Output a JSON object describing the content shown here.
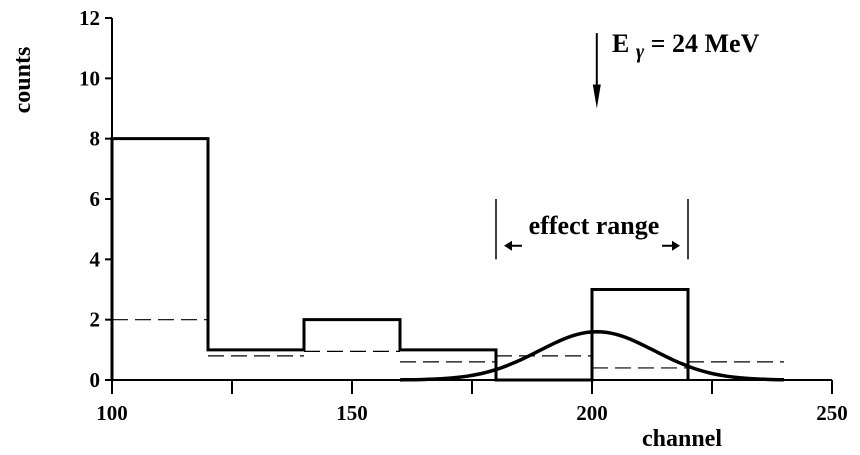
{
  "chart_data": {
    "type": "histogram",
    "xlabel": "channel",
    "ylabel": "counts",
    "xlim": [
      100,
      250
    ],
    "ylim": [
      0,
      12
    ],
    "x_ticks": [
      100,
      150,
      200,
      250
    ],
    "x_minor_ticks": [
      125,
      175,
      225
    ],
    "y_ticks": [
      0,
      2,
      4,
      6,
      8,
      10,
      12
    ],
    "grid": false,
    "series": [
      {
        "style": "solid-thick",
        "bin_edges": [
          100,
          120,
          140,
          160,
          180,
          200,
          220
        ],
        "values": [
          8,
          1,
          2,
          1,
          0,
          3
        ]
      },
      {
        "style": "dashed",
        "steps": [
          {
            "x": [
              100,
              120
            ],
            "y": 2
          },
          {
            "x": [
              120,
              140
            ],
            "y": 0.8
          },
          {
            "x": [
              140,
              160
            ],
            "y": 0.95
          },
          {
            "x": [
              160,
              180
            ],
            "y": 0.6
          },
          {
            "x": [
              180,
              200
            ],
            "y": 0.8
          },
          {
            "x": [
              200,
              220
            ],
            "y": 0.4
          },
          {
            "x": [
              220,
              240
            ],
            "y": 0.6
          }
        ]
      },
      {
        "style": "gaussian",
        "mean": 201,
        "sigma": 12,
        "amplitude": 1.6,
        "x_range": [
          160,
          240
        ]
      }
    ],
    "annotations": {
      "energy": {
        "prefix": "E",
        "symbol": "γ",
        "rest": "= 24 MeV",
        "x": 201,
        "arrow_from_y": 11.5,
        "arrow_to_y": 9.0
      },
      "range": {
        "label": "effect range",
        "x_start": 180,
        "x_end": 220,
        "y_top": 6.0,
        "y_bottom": 4.0,
        "arrow_y": 4.45
      }
    }
  }
}
